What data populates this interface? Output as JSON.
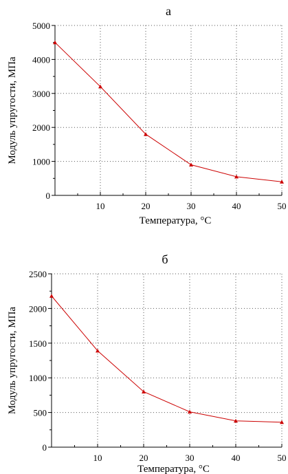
{
  "chart_data": [
    {
      "type": "line",
      "title": "а",
      "xlabel": "Температура, °С",
      "ylabel": "Модуль упругости, МПа",
      "x": [
        0,
        10,
        20,
        30,
        40,
        50
      ],
      "y": [
        4500,
        3200,
        1800,
        900,
        550,
        400
      ],
      "xlim": [
        0,
        50
      ],
      "ylim": [
        0,
        5000
      ],
      "xticks": [
        "10",
        "20",
        "30",
        "40",
        "50"
      ],
      "yticks": [
        "0",
        "1000",
        "2000",
        "3000",
        "4000",
        "5000"
      ],
      "grid": true,
      "line_color": "#cc0000",
      "marker": "triangle"
    },
    {
      "type": "line",
      "title": "б",
      "xlabel": "Температура, °С",
      "ylabel": "Модуль упругости, МПа",
      "x": [
        0,
        10,
        20,
        30,
        40,
        50
      ],
      "y": [
        2180,
        1390,
        800,
        510,
        380,
        360
      ],
      "xlim": [
        0,
        50
      ],
      "ylim": [
        0,
        2500
      ],
      "xticks": [
        "10",
        "20",
        "30",
        "40",
        "50"
      ],
      "yticks": [
        "0",
        "500",
        "1000",
        "1500",
        "2000",
        "2500"
      ],
      "grid": true,
      "line_color": "#cc0000",
      "marker": "triangle"
    }
  ]
}
